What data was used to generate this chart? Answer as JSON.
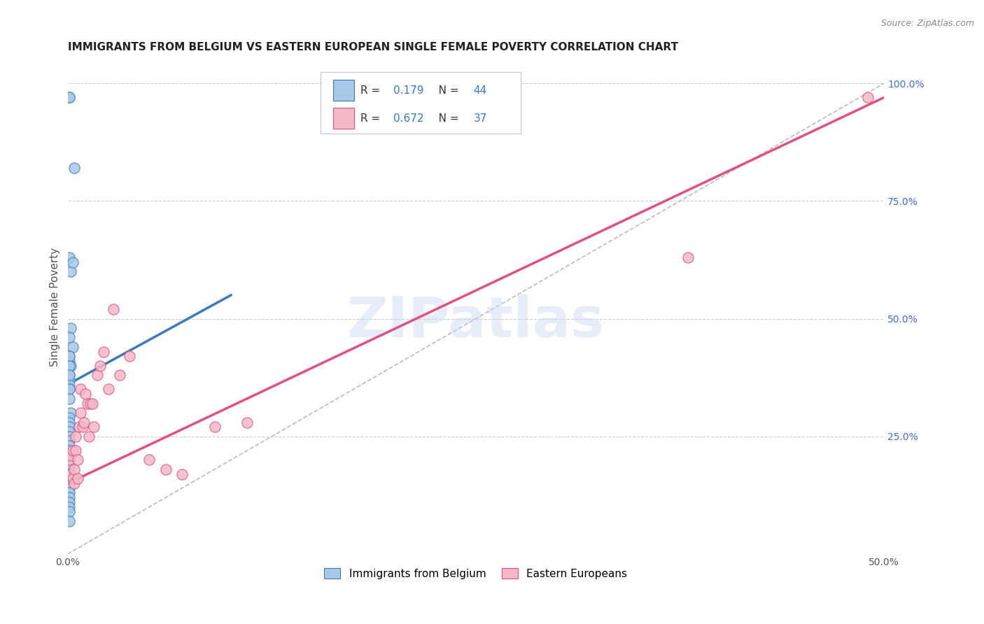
{
  "title": "IMMIGRANTS FROM BELGIUM VS EASTERN EUROPEAN SINGLE FEMALE POVERTY CORRELATION CHART",
  "source": "Source: ZipAtlas.com",
  "ylabel": "Single Female Poverty",
  "xlim": [
    0.0,
    0.5
  ],
  "ylim": [
    0.0,
    1.05
  ],
  "blue_color": "#a8c8e8",
  "pink_color": "#f4b8c8",
  "line_blue": "#3a7abf",
  "line_pink": "#e05080",
  "diag_color": "#bbbbbb",
  "watermark": "ZIPatlas",
  "blue_R": "0.179",
  "blue_N": "44",
  "pink_R": "0.672",
  "pink_N": "37",
  "belgium_x": [
    0.001,
    0.001,
    0.004,
    0.001,
    0.002,
    0.003,
    0.002,
    0.001,
    0.003,
    0.001,
    0.001,
    0.002,
    0.001,
    0.001,
    0.001,
    0.001,
    0.001,
    0.001,
    0.001,
    0.001,
    0.001,
    0.002,
    0.001,
    0.001,
    0.001,
    0.001,
    0.001,
    0.001,
    0.001,
    0.001,
    0.001,
    0.001,
    0.001,
    0.001,
    0.001,
    0.001,
    0.001,
    0.001,
    0.001,
    0.001,
    0.001,
    0.001,
    0.001,
    0.001
  ],
  "belgium_y": [
    0.97,
    0.97,
    0.82,
    0.63,
    0.6,
    0.62,
    0.48,
    0.46,
    0.44,
    0.42,
    0.41,
    0.4,
    0.38,
    0.37,
    0.36,
    0.35,
    0.42,
    0.4,
    0.38,
    0.35,
    0.33,
    0.3,
    0.29,
    0.28,
    0.27,
    0.26,
    0.25,
    0.24,
    0.23,
    0.22,
    0.21,
    0.2,
    0.19,
    0.18,
    0.17,
    0.16,
    0.15,
    0.14,
    0.13,
    0.12,
    0.11,
    0.1,
    0.09,
    0.07
  ],
  "eastern_x": [
    0.001,
    0.001,
    0.002,
    0.002,
    0.003,
    0.003,
    0.004,
    0.004,
    0.005,
    0.005,
    0.006,
    0.006,
    0.007,
    0.008,
    0.008,
    0.009,
    0.01,
    0.011,
    0.012,
    0.013,
    0.014,
    0.015,
    0.016,
    0.018,
    0.02,
    0.022,
    0.025,
    0.028,
    0.032,
    0.038,
    0.05,
    0.06,
    0.07,
    0.09,
    0.11,
    0.38,
    0.49
  ],
  "eastern_y": [
    0.2,
    0.17,
    0.21,
    0.17,
    0.22,
    0.16,
    0.18,
    0.15,
    0.25,
    0.22,
    0.2,
    0.16,
    0.27,
    0.3,
    0.35,
    0.27,
    0.28,
    0.34,
    0.32,
    0.25,
    0.32,
    0.32,
    0.27,
    0.38,
    0.4,
    0.43,
    0.35,
    0.52,
    0.38,
    0.42,
    0.2,
    0.18,
    0.17,
    0.27,
    0.28,
    0.63,
    0.97
  ],
  "blue_line_x": [
    0.0,
    0.1
  ],
  "blue_line_y": [
    0.36,
    0.55
  ],
  "pink_line_x": [
    0.0,
    0.5
  ],
  "pink_line_y": [
    0.15,
    0.97
  ]
}
